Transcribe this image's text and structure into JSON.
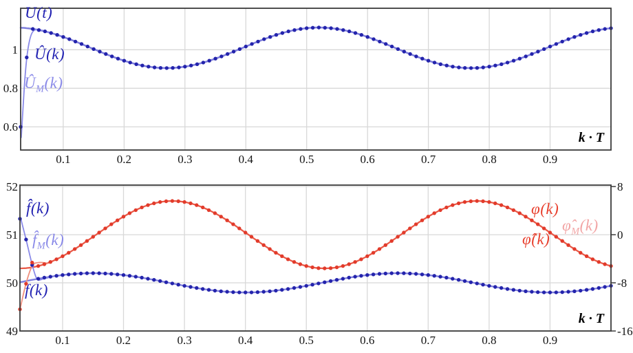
{
  "colors": {
    "dark_blue": "#2222b2",
    "violet": "#8a8ae8",
    "red": "#e8402e",
    "pink": "#f2a5a5",
    "black": "#000000",
    "grid": "#d8d8d8",
    "border": "#3a3a3a",
    "dot_blue": "#2424ac",
    "line_blue": "#8080dd",
    "dot_red": "#e23b2b",
    "line_red": "#ea5a48",
    "line_pink": "#f0917f"
  },
  "chart_data": [
    {
      "type": "line",
      "title": "",
      "xlabel": "k · T",
      "ylabel": "",
      "grid": true,
      "x_range": [
        0.03,
        1.0
      ],
      "y_range": [
        0.48,
        1.215
      ],
      "x_ticks": [
        0.1,
        0.2,
        0.3,
        0.4,
        0.5,
        0.6,
        0.7,
        0.8,
        0.9
      ],
      "x_tick_labels": [
        "0.1",
        "0.2",
        "0.3",
        "0.4",
        "0.5",
        "0.6",
        "0.7",
        "0.8",
        "0.9"
      ],
      "y_ticks": [
        0.6,
        0.8,
        1.0
      ],
      "y_tick_labels": [
        "0.6",
        "0.8",
        "1"
      ],
      "series": [
        {
          "name": "U(t)",
          "kind": "line",
          "color": "#8080dd",
          "width": 2.6,
          "x_step": 0.01,
          "model": {
            "mean": 1.01,
            "amplitude": 0.105,
            "period": 0.5,
            "x_peak": 0.52
          }
        },
        {
          "name": "Û_M(k)",
          "kind": "line",
          "color": "#8a8ae8",
          "width": 1.8,
          "points": [
            [
              0.031,
              0.545
            ],
            [
              0.034,
              0.7
            ],
            [
              0.037,
              0.85
            ],
            [
              0.041,
              0.98
            ],
            [
              0.046,
              1.065
            ],
            [
              0.052,
              1.1
            ],
            [
              0.062,
              1.103
            ],
            [
              0.08,
              1.088
            ]
          ]
        },
        {
          "name": "Û(k)",
          "kind": "dots",
          "color": "#2424ac",
          "radius": 2.7,
          "x_step": 0.01,
          "model": {
            "mean": 1.01,
            "amplitude": 0.105,
            "period": 0.5,
            "x_peak": 0.52
          },
          "overrides": [
            [
              0.03,
              0.6
            ],
            [
              0.04,
              0.96
            ]
          ]
        }
      ],
      "annotations": {
        "u_t": {
          "pre": "U(t)",
          "sub": "",
          "post": "",
          "color": "dark_blue"
        },
        "u_hat": {
          "pre": "Û(k)",
          "sub": "",
          "post": "",
          "color": "dark_blue"
        },
        "u_hat_m": {
          "pre": "Û",
          "sub": "M",
          "post": "(k)",
          "color": "violet"
        },
        "x_axis": {
          "pre": "k · T",
          "sub": "",
          "post": "",
          "color": "black"
        }
      }
    },
    {
      "type": "line",
      "title": "",
      "xlabel": "k · T",
      "ylabel": "",
      "grid": true,
      "x_range": [
        0.03,
        1.0
      ],
      "y_range": [
        49.0,
        52.03
      ],
      "y2_range": [
        -16,
        8.24
      ],
      "y2_relation": "right_value = (left_value - 51) * 8",
      "x_ticks": [
        0.1,
        0.2,
        0.3,
        0.4,
        0.5,
        0.6,
        0.7,
        0.8,
        0.9
      ],
      "x_tick_labels": [
        "0.1",
        "0.2",
        "0.3",
        "0.4",
        "0.5",
        "0.6",
        "0.7",
        "0.8",
        "0.9"
      ],
      "y_ticks": [
        49,
        50,
        51,
        52
      ],
      "y_tick_labels": [
        "49",
        "50",
        "51",
        "52"
      ],
      "y2_ticks": [
        {
          "label": "8",
          "at_left_value": 52
        },
        {
          "label": "0",
          "at_left_value": 51
        },
        {
          "label": "-8",
          "at_left_value": 50
        },
        {
          "label": "-16",
          "at_left_value": 49
        }
      ],
      "series": [
        {
          "name": "f(k)",
          "kind": "line",
          "color": "#7f7fdc",
          "width": 2.4,
          "x_step": 0.01,
          "model": {
            "mean": 50.0,
            "amplitude": 0.2,
            "period": 0.5,
            "x_peak": 0.65
          }
        },
        {
          "name": "φ(k)",
          "kind": "line",
          "color": "#ea5a48",
          "width": 2.3,
          "x_step": 0.01,
          "model": {
            "mean": 51.0,
            "amplitude": 0.7,
            "period": 0.5,
            "x_peak": 0.28
          }
        },
        {
          "name": "f̂_M(k)",
          "kind": "line",
          "color": "#8a8ae8",
          "width": 1.8,
          "points": [
            [
              0.031,
              51.35
            ],
            [
              0.04,
              50.9
            ],
            [
              0.05,
              50.38
            ],
            [
              0.058,
              50.08
            ],
            [
              0.068,
              50.08
            ],
            [
              0.08,
              50.12
            ]
          ]
        },
        {
          "name": "φ̂_M(k)",
          "kind": "line",
          "color": "#f0917f",
          "width": 1.8,
          "points": [
            [
              0.031,
              49.5
            ],
            [
              0.04,
              49.99
            ],
            [
              0.05,
              50.35
            ],
            [
              0.06,
              50.42
            ],
            [
              0.075,
              50.41
            ]
          ]
        },
        {
          "name": "f̂(k)",
          "kind": "dots",
          "color": "#2424ac",
          "radius": 2.7,
          "x_step": 0.01,
          "model": {
            "mean": 50.0,
            "amplitude": 0.2,
            "period": 0.5,
            "x_peak": 0.65
          },
          "overrides": [
            [
              0.03,
              51.33
            ],
            [
              0.04,
              50.9
            ],
            [
              0.05,
              50.37
            ]
          ]
        },
        {
          "name": "φ̂(k)",
          "kind": "dots",
          "color": "#e23b2b",
          "radius": 2.7,
          "x_step": 0.01,
          "model": {
            "mean": 51.0,
            "amplitude": 0.7,
            "period": 0.5,
            "x_peak": 0.28
          },
          "overrides": [
            [
              0.03,
              49.45
            ],
            [
              0.04,
              49.98
            ],
            [
              0.05,
              50.42
            ]
          ]
        }
      ],
      "annotations": {
        "f_hat": {
          "pre": "f̂(k)",
          "sub": "",
          "post": "",
          "color": "dark_blue"
        },
        "f_hat_m": {
          "pre": "f̂",
          "sub": "M",
          "post": "(k)",
          "color": "violet"
        },
        "f": {
          "pre": "f(k)",
          "sub": "",
          "post": "",
          "color": "dark_blue"
        },
        "phi": {
          "pre": "φ(k)",
          "sub": "",
          "post": "",
          "color": "red"
        },
        "phi_hat_m": {
          "pre": "φ̂",
          "sub": "M",
          "post": "(k)",
          "color": "pink"
        },
        "phi_hat": {
          "pre": "φ̂(k)",
          "sub": "",
          "post": "",
          "color": "red"
        },
        "x_axis": {
          "pre": "k · T",
          "sub": "",
          "post": "",
          "color": "black"
        }
      }
    }
  ]
}
